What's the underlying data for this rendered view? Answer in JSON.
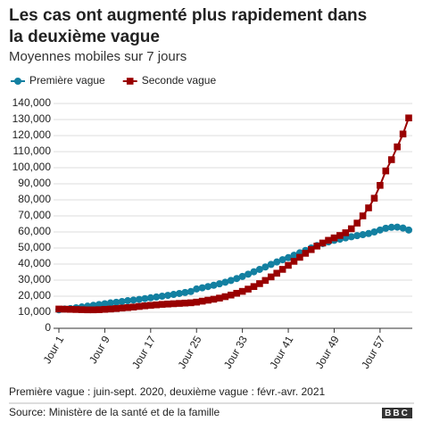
{
  "chart_data": {
    "type": "line",
    "title": "Les cas ont augmenté plus rapidement dans la deuxième vague",
    "subtitle": "Moyennes mobiles sur 7 jours",
    "categories": [
      "Jour 1",
      null,
      null,
      null,
      null,
      null,
      null,
      null,
      "Jour 9",
      null,
      null,
      null,
      null,
      null,
      null,
      null,
      "Jour 17",
      null,
      null,
      null,
      null,
      null,
      null,
      null,
      "Jour 25",
      null,
      null,
      null,
      null,
      null,
      null,
      null,
      "Jour 33",
      null,
      null,
      null,
      null,
      null,
      null,
      null,
      "Jour 41",
      null,
      null,
      null,
      null,
      null,
      null,
      null,
      "Jour 49",
      null,
      null,
      null,
      null,
      null,
      null,
      null,
      "Jour 57",
      null,
      null,
      null,
      null,
      null
    ],
    "series": [
      {
        "name": "Première vague",
        "color": "#1380a1",
        "marker": "circle",
        "values": [
          11500,
          12000,
          12300,
          12800,
          13300,
          13800,
          14300,
          14800,
          15300,
          15800,
          16200,
          16700,
          17200,
          17600,
          18000,
          18500,
          19000,
          19500,
          20000,
          20500,
          21100,
          21700,
          22300,
          22900,
          24500,
          25200,
          26000,
          26800,
          27700,
          28700,
          29800,
          31000,
          32300,
          33700,
          35200,
          36700,
          38200,
          39800,
          41300,
          42700,
          44000,
          45500,
          47000,
          48500,
          50000,
          51500,
          52800,
          53800,
          54800,
          55500,
          56300,
          57000,
          57700,
          58300,
          59000,
          60000,
          61200,
          62300,
          62900,
          63000,
          62400,
          61200
        ]
      },
      {
        "name": "Seconde vague",
        "color": "#990000",
        "marker": "square",
        "values": [
          12000,
          11900,
          11800,
          11700,
          11600,
          11500,
          11500,
          11600,
          11800,
          12000,
          12300,
          12600,
          12900,
          13200,
          13600,
          14000,
          14300,
          14600,
          14900,
          15100,
          15300,
          15500,
          15700,
          15900,
          16300,
          16900,
          17500,
          18100,
          18800,
          19700,
          20700,
          21800,
          23000,
          24400,
          26000,
          27800,
          29800,
          32000,
          34300,
          36700,
          39200,
          41700,
          44200,
          46700,
          49000,
          51200,
          53100,
          54800,
          56300,
          57800,
          59500,
          62000,
          65500,
          70000,
          75000,
          81000,
          89000,
          98000,
          105000,
          113000,
          121000,
          131000
        ]
      }
    ],
    "ylim": [
      0,
      140000
    ],
    "yticks": [
      0,
      {
        "value": 10000,
        "label": "10,000"
      },
      {
        "value": 20000,
        "label": "20,000"
      },
      {
        "value": 30000,
        "label": "30,000"
      },
      {
        "value": 40000,
        "label": "40,000"
      },
      {
        "value": 50000,
        "label": "50,000"
      },
      {
        "value": 60000,
        "label": "60,000"
      },
      {
        "value": 70000,
        "label": "70,000"
      },
      {
        "value": 80000,
        "label": "80,000"
      },
      {
        "value": 90000,
        "label": "90,000"
      },
      {
        "value": 100000,
        "label": "100,000"
      },
      {
        "value": 110000,
        "label": "110,000"
      },
      {
        "value": 120000,
        "label": "120,000"
      },
      {
        "value": 130000,
        "label": "130,000"
      },
      {
        "value": 140000,
        "label": "140,000"
      }
    ],
    "grid": true,
    "note": "Première vague : juin-sept. 2020, deuxième vague : févr.-avr. 2021",
    "source": "Source: Ministère de la santé et de la famille",
    "logo": "BBC"
  }
}
